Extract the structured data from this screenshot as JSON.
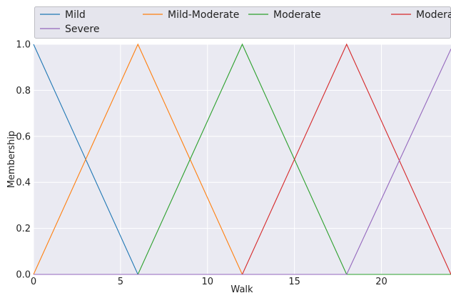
{
  "chart_data": {
    "type": "line",
    "xlabel": "Walk",
    "ylabel": "Membership",
    "xlim": [
      0,
      24
    ],
    "ylim": [
      0,
      1
    ],
    "x_ticks": [
      0,
      5,
      10,
      15,
      20
    ],
    "y_ticks": [
      0.0,
      0.2,
      0.4,
      0.6,
      0.8,
      1.0
    ],
    "grid": true,
    "legend_position": "top",
    "series": [
      {
        "name": "Mild",
        "color": "#1f77b4",
        "x": [
          0,
          6,
          24
        ],
        "y": [
          1,
          0,
          0
        ]
      },
      {
        "name": "Mild-Moderate",
        "color": "#ff7f0e",
        "x": [
          0,
          6,
          12,
          24
        ],
        "y": [
          0,
          1,
          0,
          0
        ]
      },
      {
        "name": "Moderate",
        "color": "#2ca02c",
        "x": [
          0,
          6,
          12,
          18,
          24
        ],
        "y": [
          0,
          0,
          1,
          0,
          0
        ]
      },
      {
        "name": "Moderate-Severe",
        "color": "#d62728",
        "x": [
          0,
          12,
          18,
          24
        ],
        "y": [
          0,
          0,
          1,
          0
        ]
      },
      {
        "name": "Severe",
        "color": "#9467bd",
        "x": [
          0,
          18,
          24
        ],
        "y": [
          0,
          0,
          0.98
        ]
      }
    ]
  },
  "colors": {
    "plot_background": "#eaeaf2",
    "grid": "#ffffff",
    "legend_background": "#e5e5ed"
  }
}
